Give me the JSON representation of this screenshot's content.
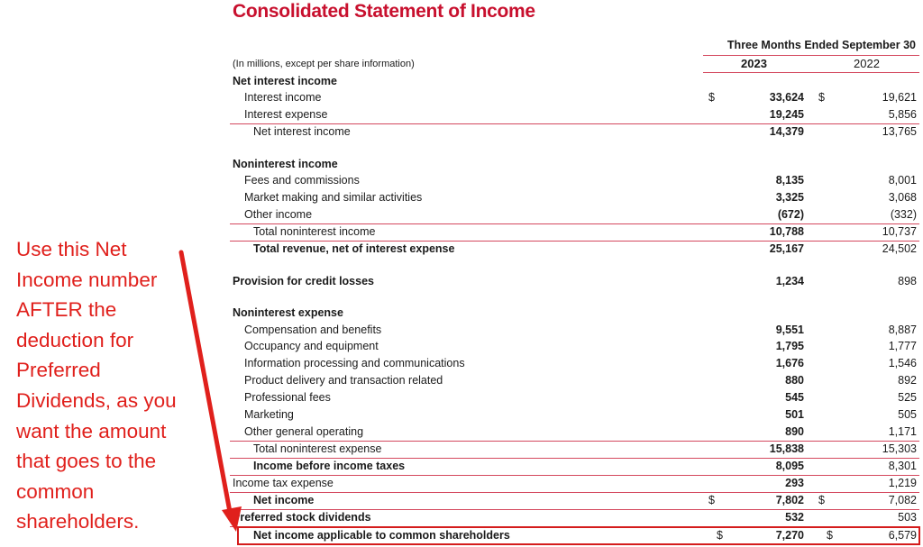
{
  "title": "Consolidated Statement of Income",
  "period_header": "Three Months Ended September 30",
  "units_note": "(In millions, except per share information)",
  "years": [
    "2023",
    "2022"
  ],
  "currency_symbol": "$",
  "rows": [
    {
      "label": "Net interest income",
      "v2023": "",
      "v2022": ""
    },
    {
      "label": "Interest income",
      "v2023": "33,624",
      "v2022": "19,621"
    },
    {
      "label": "Interest expense",
      "v2023": "19,245",
      "v2022": "5,856"
    },
    {
      "label": "Net interest income",
      "v2023": "14,379",
      "v2022": "13,765"
    },
    {
      "label": "Noninterest income",
      "v2023": "",
      "v2022": ""
    },
    {
      "label": "Fees and commissions",
      "v2023": "8,135",
      "v2022": "8,001"
    },
    {
      "label": "Market making and similar activities",
      "v2023": "3,325",
      "v2022": "3,068"
    },
    {
      "label": "Other income",
      "v2023": "(672)",
      "v2022": "(332)"
    },
    {
      "label": "Total noninterest income",
      "v2023": "10,788",
      "v2022": "10,737"
    },
    {
      "label": "Total revenue, net of interest expense",
      "v2023": "25,167",
      "v2022": "24,502"
    },
    {
      "label": "Provision for credit losses",
      "v2023": "1,234",
      "v2022": "898"
    },
    {
      "label": "Noninterest expense",
      "v2023": "",
      "v2022": ""
    },
    {
      "label": "Compensation and benefits",
      "v2023": "9,551",
      "v2022": "8,887"
    },
    {
      "label": "Occupancy and equipment",
      "v2023": "1,795",
      "v2022": "1,777"
    },
    {
      "label": "Information processing and communications",
      "v2023": "1,676",
      "v2022": "1,546"
    },
    {
      "label": "Product delivery and transaction related",
      "v2023": "880",
      "v2022": "892"
    },
    {
      "label": "Professional fees",
      "v2023": "545",
      "v2022": "525"
    },
    {
      "label": "Marketing",
      "v2023": "501",
      "v2022": "505"
    },
    {
      "label": "Other general operating",
      "v2023": "890",
      "v2022": "1,171"
    },
    {
      "label": "Total noninterest expense",
      "v2023": "15,838",
      "v2022": "15,303"
    },
    {
      "label": "Income before income taxes",
      "v2023": "8,095",
      "v2022": "8,301"
    },
    {
      "label": "Income tax expense",
      "v2023": "293",
      "v2022": "1,219"
    },
    {
      "label": "Net income",
      "v2023": "7,802",
      "v2022": "7,082"
    },
    {
      "label": "Preferred stock dividends",
      "v2023": "532",
      "v2022": "503"
    },
    {
      "label": "Net income applicable to common shareholders",
      "v2023": "7,270",
      "v2022": "6,579"
    }
  ],
  "annotation": {
    "lines": [
      "Use this Net",
      "Income number",
      "AFTER the",
      "deduction for",
      "Preferred",
      "Dividends, as you",
      "want the amount",
      "that goes to the",
      "common",
      "shareholders."
    ],
    "color": "#e0201c"
  },
  "accent_color": "#c8102e"
}
